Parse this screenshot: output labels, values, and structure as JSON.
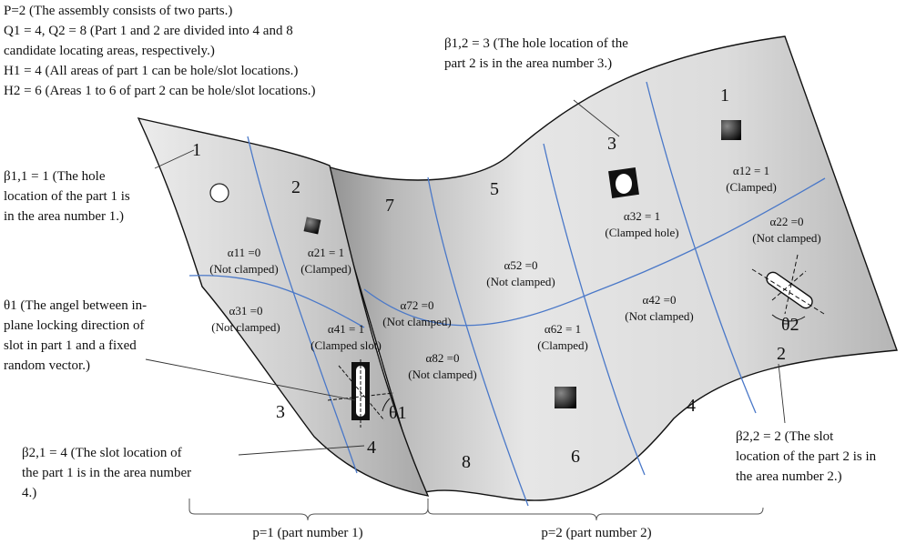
{
  "header": {
    "line1": "P=2 (The assembly consists of two parts.)",
    "line2": "Q1 = 4,  Q2 = 8 (Part 1 and 2 are divided into 4 and 8",
    "line3": "candidate locating areas, respectively.)",
    "line4": "H1 = 4 (All areas of part 1 can be hole/slot locations.)",
    "line5": "H2 = 6 (Areas 1 to 6 of part 2 can be hole/slot locations.)"
  },
  "callouts": {
    "beta12_l1": "β1,2 = 3 (The hole location of the",
    "beta12_l2": "part 2 is in the area number 3.)",
    "beta11_l1": "β1,1 = 1 (The hole",
    "beta11_l2": "location of the part 1 is",
    "beta11_l3": "in the area number 1.)",
    "theta1_l1": "θ1 (The angel between in-",
    "theta1_l2": "plane locking direction of",
    "theta1_l3": "slot in part 1 and a fixed",
    "theta1_l4": "random vector.)",
    "beta21_l1": "β2,1 = 4 (The slot location of",
    "beta21_l2": "the part 1 is in the area number",
    "beta21_l3": "4.)",
    "beta22_l1": "β2,2 = 2 (The slot",
    "beta22_l2": "location of the part 2 is in",
    "beta22_l3": "the area number 2.)"
  },
  "part1": {
    "areas": [
      "1",
      "2",
      "3",
      "4"
    ],
    "a11_name": "α11 =0",
    "a11_state": "(Not clamped)",
    "a21_name": "α21 = 1",
    "a21_state": "(Clamped)",
    "a31_name": "α31 =0",
    "a31_state": "(Not clamped)",
    "a41_name": "α41 = 1",
    "a41_state": "(Clamped slot)"
  },
  "part2": {
    "areas": [
      "1",
      "2",
      "3",
      "4",
      "5",
      "6",
      "7",
      "8"
    ],
    "a12_name": "α12 = 1",
    "a12_state": "(Clamped)",
    "a22_name": "α22 =0",
    "a22_state": "(Not clamped)",
    "a32_name": "α32 = 1",
    "a32_state": "(Clamped hole)",
    "a42_name": "α42 =0",
    "a42_state": "(Not clamped)",
    "a52_name": "α52 =0",
    "a52_state": "(Not clamped)",
    "a62_name": "α62 = 1",
    "a62_state": "(Clamped)",
    "a72_name": "α72 =0",
    "a72_state": "(Not clamped)",
    "a82_name": "α82 =0",
    "a82_state": "(Not clamped)"
  },
  "angles": {
    "theta1": "θ1",
    "theta2": "θ2"
  },
  "braces": {
    "p1": "p=1 (part number 1)",
    "p2": "p=2 (part number 2)"
  },
  "colors": {
    "area_line": "#4a78c8",
    "sheet_light": "#ececec",
    "sheet_dark": "#9a9a9a",
    "outline": "#111111"
  }
}
